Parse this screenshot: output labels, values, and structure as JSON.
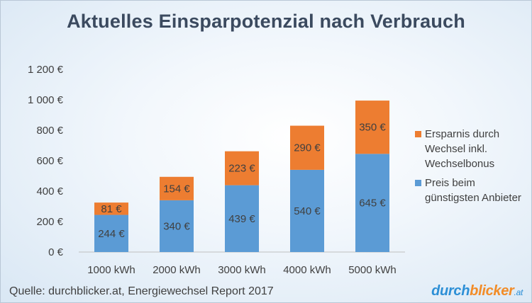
{
  "chart_data": {
    "type": "bar",
    "stacked": true,
    "title": "Aktuelles Einsparpotenzial nach Verbrauch",
    "categories": [
      "1000 kWh",
      "2000 kWh",
      "3000 kWh",
      "4000 kWh",
      "5000 kWh"
    ],
    "series": [
      {
        "name": "Preis beim günstigsten Anbieter",
        "color": "#5b9bd5",
        "values": [
          244,
          340,
          439,
          540,
          645
        ],
        "labels": [
          "244 €",
          "340 €",
          "439 €",
          "540 €",
          "645 €"
        ]
      },
      {
        "name": "Ersparnis durch Wechsel inkl. Wechselbonus",
        "color": "#ed7d31",
        "values": [
          81,
          154,
          223,
          290,
          350
        ],
        "labels": [
          "81 €",
          "154 €",
          "223 €",
          "290 €",
          "350 €"
        ]
      }
    ],
    "ylim": [
      0,
      1200
    ],
    "yticks": [
      {
        "value": 0,
        "label": "0 €"
      },
      {
        "value": 200,
        "label": "200 €"
      },
      {
        "value": 400,
        "label": "400 €"
      },
      {
        "value": 600,
        "label": "600 €"
      },
      {
        "value": 800,
        "label": "800 €"
      },
      {
        "value": 1000,
        "label": "1 000 €"
      },
      {
        "value": 1200,
        "label": "1 200 €"
      }
    ],
    "grid": false,
    "legend_position": "right"
  },
  "legend": {
    "savings_label": "Ersparnis durch Wechsel inkl. Wechselbonus",
    "price_label": "Preis beim günstigsten Anbieter"
  },
  "footer": {
    "source": "Quelle: durchblicker.at, Energiewechsel Report 2017",
    "brand_a": "durch",
    "brand_b": "blicker",
    "brand_c": ".at"
  }
}
